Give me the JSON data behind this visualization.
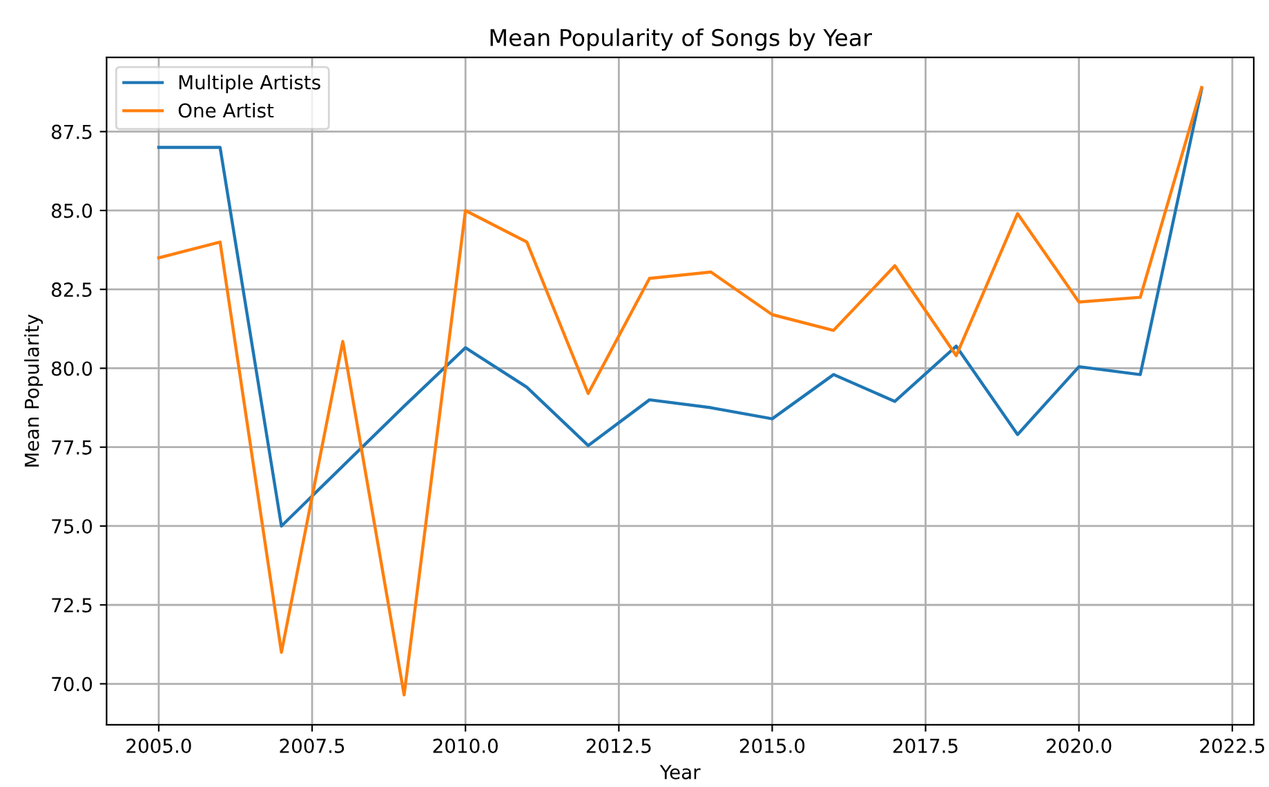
{
  "chart_data": {
    "type": "line",
    "title": "Mean Popularity of Songs by Year",
    "xlabel": "Year",
    "ylabel": "Mean Popularity",
    "x": [
      2005,
      2006,
      2007,
      2008,
      2009,
      2010,
      2011,
      2012,
      2013,
      2014,
      2015,
      2016,
      2017,
      2018,
      2019,
      2020,
      2021,
      2022
    ],
    "series": [
      {
        "name": "Multiple Artists",
        "color": "#1f77b4",
        "values": [
          87.0,
          87.0,
          75.0,
          76.9,
          78.8,
          80.65,
          79.4,
          77.55,
          79.0,
          78.75,
          78.4,
          79.8,
          78.95,
          80.7,
          77.9,
          80.05,
          79.8,
          88.85
        ]
      },
      {
        "name": "One Artist",
        "color": "#ff7f0e",
        "values": [
          83.5,
          84.0,
          71.0,
          80.85,
          69.65,
          85.0,
          84.0,
          79.2,
          82.85,
          83.05,
          81.7,
          81.2,
          83.25,
          80.4,
          84.9,
          82.1,
          82.25,
          88.9
        ]
      }
    ],
    "xlim": [
      2004.15,
      2022.85
    ],
    "ylim": [
      68.7,
      89.85
    ],
    "xticks": [
      {
        "value": 2005,
        "label": "2005.0"
      },
      {
        "value": 2007.5,
        "label": "2007.5"
      },
      {
        "value": 2010,
        "label": "2010.0"
      },
      {
        "value": 2012.5,
        "label": "2012.5"
      },
      {
        "value": 2015,
        "label": "2015.0"
      },
      {
        "value": 2017.5,
        "label": "2017.5"
      },
      {
        "value": 2020,
        "label": "2020.0"
      },
      {
        "value": 2022.5,
        "label": "2022.5"
      }
    ],
    "yticks": [
      {
        "value": 70,
        "label": "70.0"
      },
      {
        "value": 72.5,
        "label": "72.5"
      },
      {
        "value": 75,
        "label": "75.0"
      },
      {
        "value": 77.5,
        "label": "77.5"
      },
      {
        "value": 80,
        "label": "80.0"
      },
      {
        "value": 82.5,
        "label": "82.5"
      },
      {
        "value": 85,
        "label": "85.0"
      },
      {
        "value": 87.5,
        "label": "87.5"
      }
    ],
    "grid": true,
    "legend": "top left",
    "line_style": "solid"
  }
}
